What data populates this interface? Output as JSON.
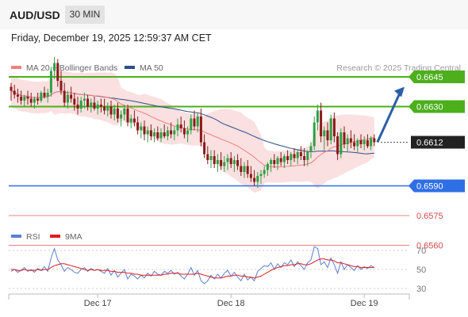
{
  "header": {
    "pair": "AUD/USD",
    "timeframe": "30 MIN"
  },
  "datetime": "Friday, December 19, 2025 12:59:37 AM CET",
  "legend": [
    {
      "label": "MA 20 + Bollinger Bands",
      "color": "#f08080"
    },
    {
      "label": "MA 50",
      "color": "#2c4f8c"
    }
  ],
  "source": "Research © 2025 Trading Central",
  "rsi_legend": [
    {
      "label": "RSI",
      "color": "#5a7fd6"
    },
    {
      "label": "9MA",
      "color": "#e01b1b"
    }
  ],
  "colors": {
    "up_candle": "#2ea043",
    "down_candle": "#8b1a1a",
    "resistance": "#4caf1b",
    "support": "#2f6fe6",
    "support_weak": "#f08080",
    "arrow": "#2d5ea6",
    "last_price_bg": "#222222",
    "bollinger": "#f6c6c6"
  },
  "chart_data": [
    {
      "type": "candlestick",
      "title": "AUD/USD",
      "timeframe": "30 MIN",
      "ylim": [
        0.6555,
        0.6655
      ],
      "x_ticks": [
        {
          "label": "Dec 17",
          "index": 26
        },
        {
          "label": "Dec 18",
          "index": 66
        },
        {
          "label": "Dec 19",
          "index": 106
        }
      ],
      "levels": [
        {
          "value": 0.6645,
          "label": "0.6645",
          "kind": "resistance"
        },
        {
          "value": 0.663,
          "label": "0.6630",
          "kind": "resistance"
        },
        {
          "value": 0.6612,
          "label": "0.6612",
          "kind": "last_price"
        },
        {
          "value": 0.659,
          "label": "0.6590",
          "kind": "support"
        },
        {
          "value": 0.6575,
          "label": "0.6575",
          "kind": "support_weak"
        },
        {
          "value": 0.656,
          "label": "0.6560",
          "kind": "support_weak"
        }
      ],
      "candles": [
        [
          0.664,
          0.6642,
          0.6633,
          0.6638
        ],
        [
          0.6638,
          0.6641,
          0.6634,
          0.6636
        ],
        [
          0.6636,
          0.6639,
          0.6632,
          0.6635
        ],
        [
          0.6635,
          0.6638,
          0.6631,
          0.6633
        ],
        [
          0.6633,
          0.6636,
          0.663,
          0.6635
        ],
        [
          0.6635,
          0.6638,
          0.6631,
          0.6634
        ],
        [
          0.6634,
          0.6637,
          0.663,
          0.6632
        ],
        [
          0.6632,
          0.6635,
          0.6629,
          0.6634
        ],
        [
          0.6634,
          0.6637,
          0.6631,
          0.6633
        ],
        [
          0.6633,
          0.6638,
          0.6632,
          0.6637
        ],
        [
          0.6637,
          0.664,
          0.6634,
          0.6635
        ],
        [
          0.6635,
          0.6639,
          0.6632,
          0.6637
        ],
        [
          0.6637,
          0.665,
          0.6635,
          0.6648
        ],
        [
          0.6648,
          0.6655,
          0.6644,
          0.6652
        ],
        [
          0.6652,
          0.6654,
          0.664,
          0.6643
        ],
        [
          0.6643,
          0.6648,
          0.6636,
          0.6638
        ],
        [
          0.6638,
          0.6642,
          0.663,
          0.6632
        ],
        [
          0.6632,
          0.6638,
          0.6629,
          0.6636
        ],
        [
          0.6636,
          0.664,
          0.6632,
          0.6634
        ],
        [
          0.6634,
          0.6637,
          0.6628,
          0.6631
        ],
        [
          0.6631,
          0.6635,
          0.6626,
          0.6629
        ],
        [
          0.6629,
          0.6635,
          0.6627,
          0.6633
        ],
        [
          0.6633,
          0.6637,
          0.6629,
          0.6634
        ],
        [
          0.6634,
          0.6636,
          0.6628,
          0.663
        ],
        [
          0.663,
          0.6634,
          0.6627,
          0.6632
        ],
        [
          0.6632,
          0.6635,
          0.6628,
          0.6629
        ],
        [
          0.6629,
          0.6633,
          0.6626,
          0.6631
        ],
        [
          0.6631,
          0.6634,
          0.6627,
          0.663
        ],
        [
          0.663,
          0.6634,
          0.6626,
          0.6628
        ],
        [
          0.6628,
          0.6632,
          0.6625,
          0.663
        ],
        [
          0.663,
          0.6633,
          0.6624,
          0.6626
        ],
        [
          0.6626,
          0.6631,
          0.6623,
          0.6629
        ],
        [
          0.6629,
          0.6632,
          0.6622,
          0.6624
        ],
        [
          0.6624,
          0.6628,
          0.662,
          0.6626
        ],
        [
          0.6626,
          0.6631,
          0.6623,
          0.6629
        ],
        [
          0.6629,
          0.6631,
          0.662,
          0.6622
        ],
        [
          0.6622,
          0.6626,
          0.6619,
          0.6624
        ],
        [
          0.6624,
          0.6628,
          0.662,
          0.6622
        ],
        [
          0.6622,
          0.6625,
          0.6616,
          0.6618
        ],
        [
          0.6618,
          0.6622,
          0.6614,
          0.662
        ],
        [
          0.662,
          0.6623,
          0.6613,
          0.6616
        ],
        [
          0.6616,
          0.662,
          0.6612,
          0.6618
        ],
        [
          0.6618,
          0.6621,
          0.6613,
          0.6615
        ],
        [
          0.6615,
          0.6619,
          0.6612,
          0.6617
        ],
        [
          0.6617,
          0.662,
          0.6613,
          0.6614
        ],
        [
          0.6614,
          0.6619,
          0.6612,
          0.6617
        ],
        [
          0.6617,
          0.6621,
          0.6614,
          0.6615
        ],
        [
          0.6615,
          0.662,
          0.6613,
          0.6618
        ],
        [
          0.6618,
          0.6622,
          0.6614,
          0.6616
        ],
        [
          0.6616,
          0.662,
          0.6613,
          0.6618
        ],
        [
          0.6618,
          0.6624,
          0.6615,
          0.6621
        ],
        [
          0.6621,
          0.6625,
          0.6617,
          0.6619
        ],
        [
          0.6619,
          0.6623,
          0.6614,
          0.6616
        ],
        [
          0.6616,
          0.662,
          0.6612,
          0.6618
        ],
        [
          0.6618,
          0.6626,
          0.6616,
          0.6624
        ],
        [
          0.6624,
          0.6628,
          0.6618,
          0.662
        ],
        [
          0.662,
          0.6627,
          0.6617,
          0.6625
        ],
        [
          0.6625,
          0.6629,
          0.661,
          0.6612
        ],
        [
          0.6612,
          0.6616,
          0.6604,
          0.6606
        ],
        [
          0.6606,
          0.661,
          0.6601,
          0.6603
        ],
        [
          0.6603,
          0.6608,
          0.6599,
          0.6605
        ],
        [
          0.6605,
          0.6608,
          0.6599,
          0.6601
        ],
        [
          0.6601,
          0.6606,
          0.6597,
          0.6603
        ],
        [
          0.6603,
          0.6607,
          0.6598,
          0.66
        ],
        [
          0.66,
          0.6605,
          0.6597,
          0.6602
        ],
        [
          0.6602,
          0.6606,
          0.6598,
          0.6604
        ],
        [
          0.6604,
          0.6607,
          0.6599,
          0.6601
        ],
        [
          0.6601,
          0.6605,
          0.6597,
          0.6603
        ],
        [
          0.6603,
          0.6606,
          0.6598,
          0.66
        ],
        [
          0.66,
          0.6604,
          0.6595,
          0.6597
        ],
        [
          0.6597,
          0.6602,
          0.6594,
          0.66
        ],
        [
          0.66,
          0.6603,
          0.6594,
          0.6596
        ],
        [
          0.6596,
          0.66,
          0.6592,
          0.6594
        ],
        [
          0.6594,
          0.6598,
          0.659,
          0.6592
        ],
        [
          0.6592,
          0.6597,
          0.6589,
          0.6595
        ],
        [
          0.6595,
          0.6598,
          0.6591,
          0.6596
        ],
        [
          0.6596,
          0.66,
          0.6594,
          0.6598
        ],
        [
          0.6598,
          0.6602,
          0.6595,
          0.6601
        ],
        [
          0.6601,
          0.6604,
          0.6597,
          0.6603
        ],
        [
          0.6603,
          0.6606,
          0.6599,
          0.6601
        ],
        [
          0.6601,
          0.6605,
          0.6598,
          0.6604
        ],
        [
          0.6604,
          0.6607,
          0.66,
          0.6602
        ],
        [
          0.6602,
          0.6606,
          0.6599,
          0.6605
        ],
        [
          0.6605,
          0.6608,
          0.6601,
          0.6603
        ],
        [
          0.6603,
          0.6607,
          0.66,
          0.6606
        ],
        [
          0.6606,
          0.6609,
          0.6602,
          0.6604
        ],
        [
          0.6604,
          0.6608,
          0.6601,
          0.6607
        ],
        [
          0.6607,
          0.661,
          0.6603,
          0.6605
        ],
        [
          0.6605,
          0.6609,
          0.66,
          0.6603
        ],
        [
          0.6603,
          0.6608,
          0.66,
          0.6607
        ],
        [
          0.6607,
          0.6612,
          0.6604,
          0.661
        ],
        [
          0.661,
          0.6625,
          0.6608,
          0.6622
        ],
        [
          0.6622,
          0.6631,
          0.6618,
          0.6628
        ],
        [
          0.6628,
          0.6632,
          0.6612,
          0.6615
        ],
        [
          0.6615,
          0.662,
          0.6608,
          0.6618
        ],
        [
          0.6618,
          0.6622,
          0.661,
          0.6613
        ],
        [
          0.6613,
          0.6626,
          0.6611,
          0.6624
        ],
        [
          0.6624,
          0.6627,
          0.6612,
          0.6615
        ],
        [
          0.6615,
          0.6617,
          0.6603,
          0.6606
        ],
        [
          0.6606,
          0.6619,
          0.6604,
          0.6617
        ],
        [
          0.6617,
          0.662,
          0.6609,
          0.6611
        ],
        [
          0.6611,
          0.6616,
          0.6607,
          0.6614
        ],
        [
          0.6614,
          0.6618,
          0.6609,
          0.6612
        ],
        [
          0.6612,
          0.6616,
          0.6608,
          0.661
        ],
        [
          0.661,
          0.6614,
          0.6607,
          0.6613
        ],
        [
          0.6613,
          0.6616,
          0.6609,
          0.6611
        ],
        [
          0.6611,
          0.6615,
          0.6608,
          0.6613
        ],
        [
          0.6613,
          0.6616,
          0.6609,
          0.661
        ],
        [
          0.661,
          0.6615,
          0.6608,
          0.6614
        ],
        [
          0.6614,
          0.6616,
          0.661,
          0.6612
        ]
      ]
    },
    {
      "type": "line",
      "title": "RSI",
      "ylim": [
        20,
        80
      ],
      "y_ticks": [
        70,
        50,
        30
      ],
      "series": [
        {
          "name": "RSI",
          "values": [
            48,
            50,
            47,
            49,
            52,
            48,
            50,
            47,
            51,
            49,
            53,
            48,
            62,
            72,
            60,
            55,
            48,
            52,
            50,
            47,
            46,
            50,
            52,
            48,
            51,
            49,
            50,
            48,
            46,
            51,
            44,
            49,
            42,
            46,
            50,
            40,
            45,
            43,
            40,
            44,
            41,
            46,
            43,
            48,
            45,
            44,
            48,
            46,
            49,
            45,
            47,
            43,
            40,
            45,
            52,
            44,
            49,
            38,
            35,
            38,
            44,
            40,
            45,
            41,
            46,
            49,
            43,
            47,
            42,
            38,
            45,
            39,
            42,
            38,
            48,
            51,
            54,
            53,
            57,
            50,
            56,
            52,
            57,
            55,
            60,
            53,
            58,
            54,
            50,
            57,
            60,
            74,
            72,
            55,
            58,
            52,
            62,
            55,
            46,
            58,
            50,
            55,
            52,
            49,
            54,
            50,
            53,
            51,
            54,
            52
          ]
        },
        {
          "name": "9MA",
          "values": [
            50,
            50,
            49,
            49,
            50,
            49,
            49,
            49,
            50,
            49,
            50,
            50,
            52,
            54,
            55,
            56,
            56,
            55,
            54,
            53,
            52,
            51,
            50,
            49,
            50,
            49,
            50,
            49,
            49,
            49,
            48,
            48,
            47,
            47,
            47,
            46,
            46,
            45,
            45,
            44,
            44,
            44,
            44,
            44,
            44,
            44,
            45,
            45,
            46,
            46,
            46,
            45,
            45,
            45,
            45,
            45,
            46,
            45,
            44,
            43,
            42,
            41,
            41,
            41,
            42,
            43,
            43,
            44,
            44,
            43,
            43,
            42,
            42,
            41,
            42,
            43,
            45,
            47,
            49,
            51,
            52,
            53,
            54,
            54,
            55,
            55,
            56,
            56,
            55,
            55,
            56,
            58,
            60,
            61,
            61,
            60,
            60,
            59,
            57,
            57,
            56,
            55,
            54,
            53,
            53,
            52,
            52,
            52,
            52,
            52
          ]
        }
      ]
    }
  ]
}
